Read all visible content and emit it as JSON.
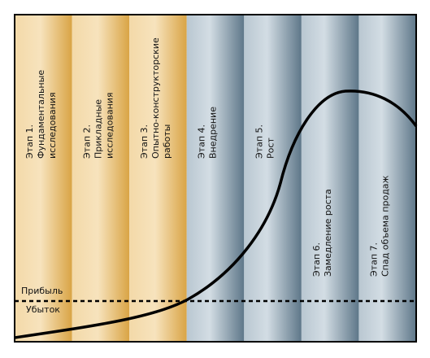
{
  "stages": [
    {
      "lines": [
        "Этап 1.",
        "Фундаментальные",
        "исследования"
      ]
    },
    {
      "lines": [
        "Этап 2.",
        "Прикладные",
        "исследования"
      ]
    },
    {
      "lines": [
        "Этап 3.",
        "Опытно-конструкторские",
        "работы"
      ]
    },
    {
      "lines": [
        "Этап 4.",
        "Внедрение"
      ]
    },
    {
      "lines": [
        "Этап 5.",
        "Рост"
      ]
    },
    {
      "lines": [
        "Этап 6.",
        "Замедление роста"
      ]
    },
    {
      "lines": [
        "Этап 7.",
        "Спад объема продаж"
      ]
    }
  ],
  "labels": {
    "profit": "Прибыль",
    "loss": "Убыток"
  }
}
